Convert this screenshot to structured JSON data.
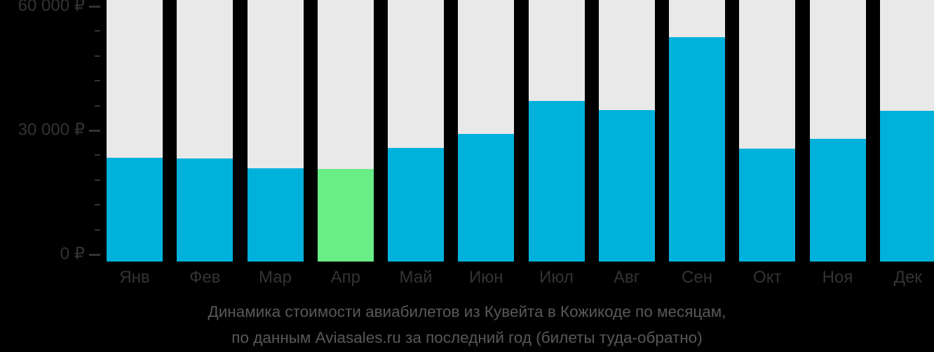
{
  "caption": {
    "line1": "Динамика стоимости авиабилетов из Кувейта в Кожикоде по месяцам,",
    "line2": "по данным Aviasales.ru за последний год (билеты туда-обратно)"
  },
  "chart_data": {
    "type": "bar",
    "title": "Динамика стоимости авиабилетов из Кувейта в Кожикоде по месяцам, по данным Aviasales.ru за последний год (билеты туда-обратно)",
    "categories": [
      "Янв",
      "Фев",
      "Мар",
      "Апр",
      "Май",
      "Июн",
      "Июл",
      "Авг",
      "Сен",
      "Окт",
      "Ноя",
      "Дек"
    ],
    "values": [
      23400,
      23200,
      20900,
      20700,
      25700,
      29200,
      37200,
      35000,
      52500,
      25600,
      28000,
      34800
    ],
    "highlight_index": 3,
    "unit": "₽",
    "ylim": [
      0,
      60000
    ],
    "yticks": [
      {
        "value": 0,
        "label": "0 ₽"
      },
      {
        "value": 30000,
        "label": "30 000 ₽"
      },
      {
        "value": 60000,
        "label": "60 000 ₽"
      }
    ],
    "minor_tick_step": 6000,
    "legend": "none",
    "grid": "off",
    "colors": {
      "bar": "#00B1DC",
      "highlight": "#69ED87",
      "track": "#E9E9E9",
      "axis_text": "#333333",
      "tick": "#333333",
      "caption_text": "#585858",
      "background": "#000000"
    }
  }
}
